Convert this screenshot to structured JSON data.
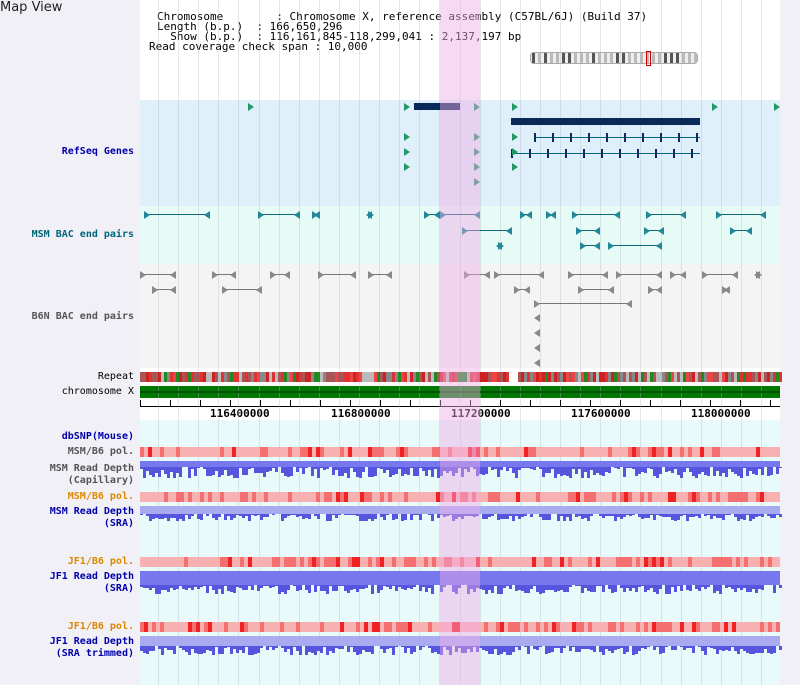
{
  "title": "Map View",
  "info": {
    "lines": [
      "Chromosome        : Chromosome X, reference assembly (C57BL/6J) (Build 37)",
      "Length (b.p.)  : 166,650,296",
      "  Show (b.p.)  : 116,161,845-118,299,041 : 2,137,197 bp",
      "Read coverage check span : 10,000"
    ]
  },
  "tracks": {
    "refseq": "RefSeq Genes",
    "msm_bac": "MSM BAC end pairs",
    "b6n_bac": "B6N BAC end pairs",
    "repeat": "Repeat",
    "chromosome": "chromosome X",
    "dbsnp": "dbSNP(Mouse)",
    "msm_b6_pol_1": "MSM/B6 pol.",
    "msm_read_cap": "MSM Read Depth\n(Capillary)",
    "msm_b6_pol_2": "MSM/B6 pol.",
    "msm_read_sra": "MSM Read Depth\n(SRA)",
    "jf1_b6_pol_1": "JF1/B6 pol.",
    "jf1_read_sra": "JF1 Read Depth\n(SRA)",
    "jf1_b6_pol_2": "JF1/B6 pol.",
    "jf1_read_trim": "JF1 Read Depth\n(SRA trimmed)"
  },
  "axis": {
    "ticks": [
      "116400000",
      "116800000",
      "117200000",
      "117600000",
      "118000000"
    ]
  },
  "colors": {
    "refseq_label": "#0000aa",
    "msm_label": "#006677",
    "b6n_label": "#555555",
    "orange_label": "#dd8800",
    "blue_label": "#0000aa"
  }
}
